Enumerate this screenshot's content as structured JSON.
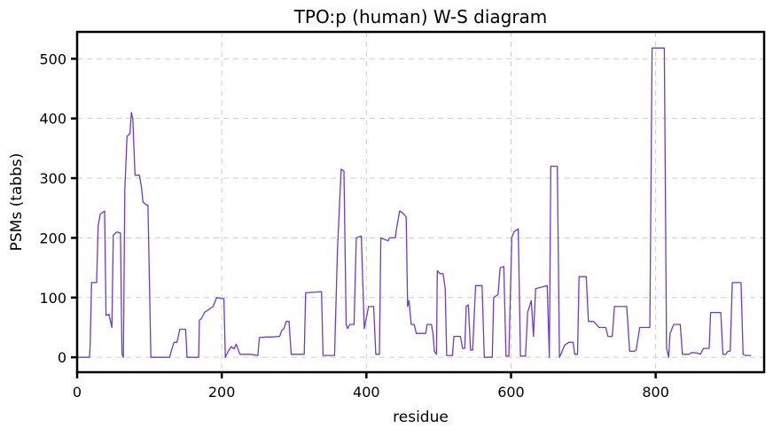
{
  "chart_data": {
    "type": "line",
    "title": "TPO:p (human) W-S diagram",
    "xlabel": "residue",
    "ylabel": "PSMs (tabbs)",
    "xlim": [
      0,
      950
    ],
    "ylim": [
      -25,
      545
    ],
    "xticks": [
      0,
      200,
      400,
      600,
      800
    ],
    "yticks": [
      0,
      100,
      200,
      300,
      400,
      500
    ],
    "grid": true,
    "series": [
      {
        "color": "#6a3bd6",
        "points": [
          [
            0,
            0
          ],
          [
            17,
            0
          ],
          [
            18,
            20
          ],
          [
            20,
            125
          ],
          [
            27,
            125
          ],
          [
            29,
            220
          ],
          [
            32,
            240
          ],
          [
            38,
            245
          ],
          [
            40,
            70
          ],
          [
            44,
            72
          ],
          [
            48,
            50
          ],
          [
            50,
            205
          ],
          [
            55,
            210
          ],
          [
            60,
            208
          ],
          [
            62,
            5
          ],
          [
            64,
            0
          ],
          [
            66,
            280
          ],
          [
            69,
            370
          ],
          [
            73,
            375
          ],
          [
            75,
            410
          ],
          [
            77,
            400
          ],
          [
            80,
            305
          ],
          [
            86,
            305
          ],
          [
            89,
            285
          ],
          [
            91,
            260
          ],
          [
            96,
            255
          ],
          [
            98,
            255
          ],
          [
            102,
            0
          ],
          [
            128,
            0
          ],
          [
            130,
            10
          ],
          [
            134,
            25
          ],
          [
            138,
            25
          ],
          [
            140,
            35
          ],
          [
            142,
            47
          ],
          [
            150,
            47
          ],
          [
            152,
            0
          ],
          [
            168,
            0
          ],
          [
            169,
            62
          ],
          [
            172,
            65
          ],
          [
            176,
            75
          ],
          [
            182,
            80
          ],
          [
            188,
            85
          ],
          [
            193,
            100
          ],
          [
            203,
            98
          ],
          [
            205,
            0
          ],
          [
            209,
            10
          ],
          [
            213,
            18
          ],
          [
            217,
            14
          ],
          [
            220,
            22
          ],
          [
            225,
            5
          ],
          [
            240,
            5
          ],
          [
            250,
            3
          ],
          [
            252,
            33
          ],
          [
            262,
            34
          ],
          [
            268,
            34
          ],
          [
            280,
            35
          ],
          [
            283,
            45
          ],
          [
            286,
            48
          ],
          [
            289,
            60
          ],
          [
            293,
            60
          ],
          [
            296,
            5
          ],
          [
            314,
            5
          ],
          [
            316,
            108
          ],
          [
            338,
            110
          ],
          [
            340,
            3
          ],
          [
            356,
            3
          ],
          [
            360,
            180
          ],
          [
            365,
            315
          ],
          [
            369,
            312
          ],
          [
            372,
            55
          ],
          [
            374,
            48
          ],
          [
            377,
            55
          ],
          [
            383,
            55
          ],
          [
            386,
            200
          ],
          [
            393,
            203
          ],
          [
            397,
            48
          ],
          [
            403,
            85
          ],
          [
            410,
            85
          ],
          [
            413,
            5
          ],
          [
            418,
            5
          ],
          [
            420,
            200
          ],
          [
            430,
            195
          ],
          [
            432,
            200
          ],
          [
            440,
            200
          ],
          [
            442,
            218
          ],
          [
            446,
            245
          ],
          [
            450,
            242
          ],
          [
            455,
            235
          ],
          [
            457,
            85
          ],
          [
            459,
            95
          ],
          [
            462,
            55
          ],
          [
            466,
            55
          ],
          [
            469,
            40
          ],
          [
            478,
            40
          ],
          [
            482,
            40
          ],
          [
            484,
            55
          ],
          [
            486,
            55
          ],
          [
            490,
            55
          ],
          [
            492,
            40
          ],
          [
            494,
            10
          ],
          [
            497,
            5
          ],
          [
            498,
            145
          ],
          [
            502,
            140
          ],
          [
            506,
            140
          ],
          [
            509,
            115
          ],
          [
            511,
            3
          ],
          [
            519,
            3
          ],
          [
            521,
            35
          ],
          [
            530,
            35
          ],
          [
            533,
            15
          ],
          [
            536,
            15
          ],
          [
            538,
            85
          ],
          [
            541,
            88
          ],
          [
            544,
            12
          ],
          [
            547,
            12
          ],
          [
            551,
            120
          ],
          [
            560,
            120
          ],
          [
            563,
            0
          ],
          [
            574,
            0
          ],
          [
            576,
            100
          ],
          [
            582,
            105
          ],
          [
            585,
            150
          ],
          [
            590,
            152
          ],
          [
            593,
            2
          ],
          [
            597,
            2
          ],
          [
            601,
            200
          ],
          [
            604,
            210
          ],
          [
            610,
            215
          ],
          [
            613,
            2
          ],
          [
            620,
            2
          ],
          [
            623,
            75
          ],
          [
            628,
            95
          ],
          [
            631,
            35
          ],
          [
            634,
            115
          ],
          [
            650,
            120
          ],
          [
            653,
            0
          ],
          [
            655,
            320
          ],
          [
            664,
            320
          ],
          [
            667,
            0
          ],
          [
            670,
            8
          ],
          [
            674,
            20
          ],
          [
            680,
            25
          ],
          [
            686,
            25
          ],
          [
            688,
            5
          ],
          [
            692,
            5
          ],
          [
            694,
            135
          ],
          [
            704,
            135
          ],
          [
            707,
            60
          ],
          [
            714,
            60
          ],
          [
            718,
            55
          ],
          [
            722,
            50
          ],
          [
            731,
            50
          ],
          [
            734,
            35
          ],
          [
            740,
            35
          ],
          [
            743,
            85
          ],
          [
            750,
            85
          ],
          [
            760,
            85
          ],
          [
            764,
            10
          ],
          [
            770,
            10
          ],
          [
            773,
            12
          ],
          [
            778,
            50
          ],
          [
            792,
            50
          ],
          [
            795,
            518
          ],
          [
            812,
            518
          ],
          [
            815,
            15
          ],
          [
            818,
            0
          ],
          [
            820,
            40
          ],
          [
            825,
            55
          ],
          [
            834,
            55
          ],
          [
            837,
            5
          ],
          [
            840,
            5
          ],
          [
            846,
            5
          ],
          [
            850,
            8
          ],
          [
            858,
            7
          ],
          [
            862,
            5
          ],
          [
            866,
            15
          ],
          [
            874,
            15
          ],
          [
            876,
            75
          ],
          [
            890,
            75
          ],
          [
            893,
            5
          ],
          [
            897,
            5
          ],
          [
            900,
            10
          ],
          [
            903,
            10
          ],
          [
            906,
            125
          ],
          [
            918,
            125
          ],
          [
            921,
            5
          ],
          [
            924,
            3
          ],
          [
            932,
            3
          ]
        ]
      }
    ]
  }
}
